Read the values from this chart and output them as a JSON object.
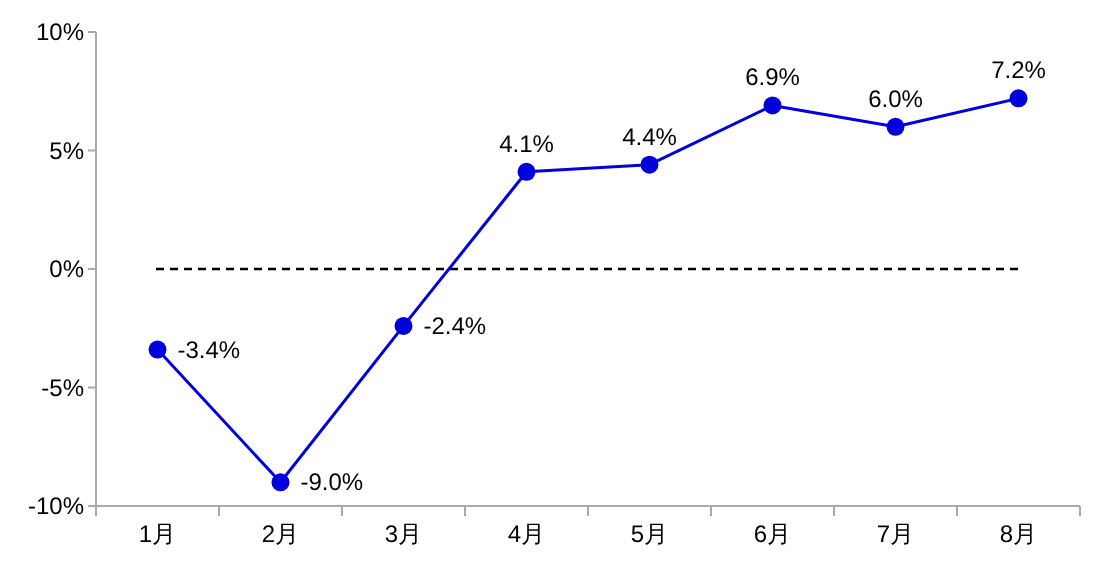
{
  "chart_data": {
    "type": "line",
    "categories": [
      "1月",
      "2月",
      "3月",
      "4月",
      "5月",
      "6月",
      "7月",
      "8月"
    ],
    "series": [
      {
        "color": "#0000dd",
        "values": [
          -3.4,
          -9.0,
          -2.4,
          4.1,
          4.4,
          6.9,
          6.0,
          7.2
        ],
        "value_labels": [
          "-3.4%",
          "-9.0%",
          "-2.4%",
          "4.1%",
          "4.4%",
          "6.9%",
          "6.0%",
          "7.2%"
        ]
      }
    ],
    "ylim": [
      -10,
      10
    ],
    "yticks": [
      {
        "value": -10,
        "label": "-10%"
      },
      {
        "value": -5,
        "label": "-5%"
      },
      {
        "value": 0,
        "label": "0%"
      },
      {
        "value": 5,
        "label": "5%"
      },
      {
        "value": 10,
        "label": "10%"
      }
    ],
    "ref_lines": [
      {
        "axis": "y",
        "value": 0,
        "color": "#000000",
        "line_style": "dashed"
      }
    ],
    "marker": "circle",
    "line_style": "solid"
  }
}
